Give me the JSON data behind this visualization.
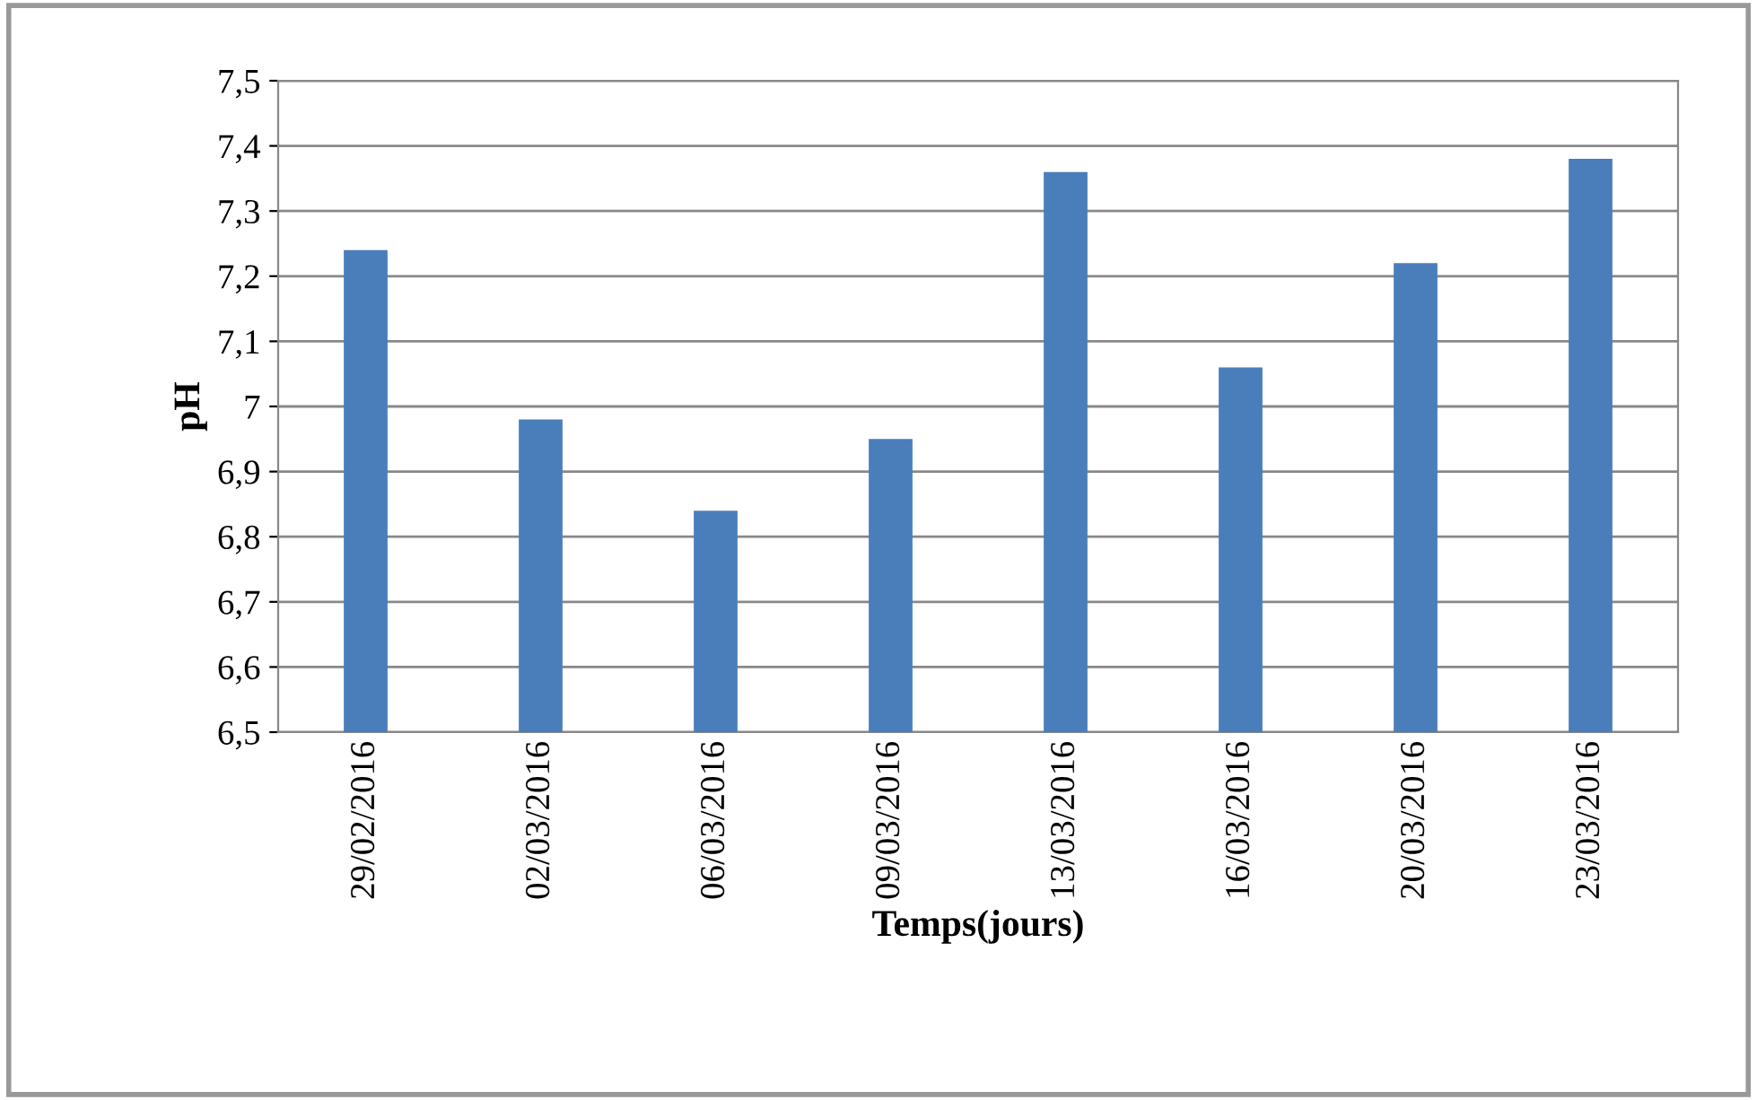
{
  "chart_data": {
    "type": "bar",
    "xlabel": "Temps(jours)",
    "ylabel": "pH",
    "categories": [
      "29/02/2016",
      "02/03/2016",
      "06/03/2016",
      "09/03/2016",
      "13/03/2016",
      "16/03/2016",
      "20/03/2016",
      "23/03/2016"
    ],
    "values": [
      7.24,
      6.98,
      6.84,
      6.95,
      7.36,
      7.06,
      7.22,
      7.38
    ],
    "color": "#4a7ebb",
    "ylim": [
      6.5,
      7.5
    ],
    "yticks": [
      {
        "value": 6.5,
        "label": "6,5"
      },
      {
        "value": 6.6,
        "label": "6,6"
      },
      {
        "value": 6.7,
        "label": "6,7"
      },
      {
        "value": 6.8,
        "label": "6,8"
      },
      {
        "value": 6.9,
        "label": "6,9"
      },
      7,
      {
        "value": 7.1,
        "label": "7,1"
      },
      {
        "value": 7.2,
        "label": "7,2"
      },
      {
        "value": 7.3,
        "label": "7,3"
      },
      {
        "value": 7.4,
        "label": "7,4"
      },
      {
        "value": 7.5,
        "label": "7,5"
      }
    ],
    "grid": "y",
    "legend": false
  }
}
